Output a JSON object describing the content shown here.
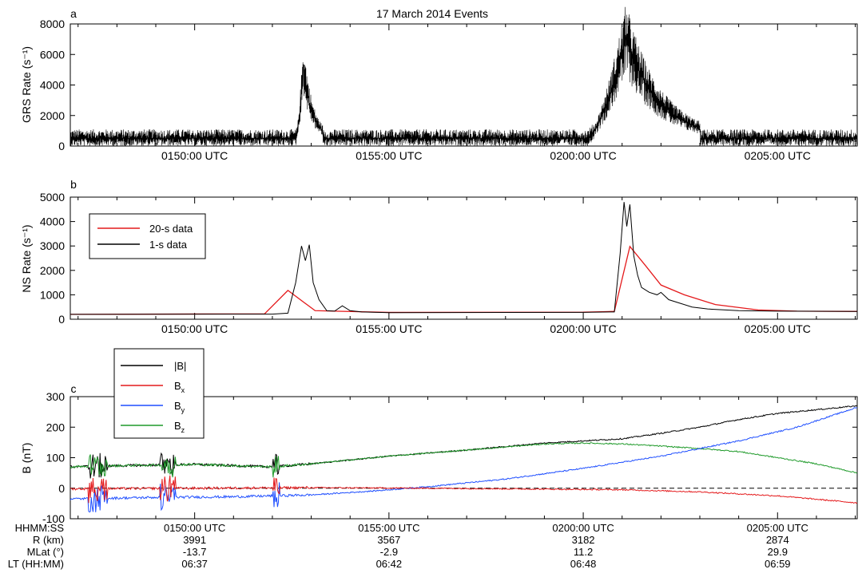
{
  "figure": {
    "title": "17 March 2014 Events",
    "colors": {
      "black": "#000000",
      "red": "#e41a1c",
      "blue": "#1f4fff",
      "green": "#1f9a2a"
    }
  },
  "chart_data": [
    {
      "panel": "a",
      "type": "line",
      "ylabel": "GRS Rate (s⁻¹)",
      "ylim": [
        0,
        8000
      ],
      "yticks": [
        0,
        2000,
        4000,
        6000,
        8000
      ],
      "xlim_minutes": [
        -3.2,
        7.05
      ],
      "xticks": [
        {
          "t": 0,
          "label": "0150:00 UTC"
        },
        {
          "t": 5,
          "label": "0155:00 UTC"
        },
        {
          "t": 10,
          "label": "0200:00 UTC"
        },
        {
          "t": 15,
          "label": "0205:00 UTC"
        }
      ],
      "series": [
        {
          "color": "#000000",
          "baseline": 500,
          "noise": 600,
          "events": [
            {
              "start": 2.6,
              "peak_t": 2.8,
              "peak": 5200,
              "end": 3.3,
              "decay_level": 1200
            },
            {
              "start": 10.1,
              "peak_t": 11.1,
              "peak": 7000,
              "end": 13.0,
              "decay_level": 2200
            }
          ]
        }
      ]
    },
    {
      "panel": "b",
      "type": "line",
      "ylabel": "NS Rate (s⁻¹)",
      "ylim": [
        0,
        5000
      ],
      "yticks": [
        0,
        1000,
        2000,
        3000,
        4000,
        5000
      ],
      "xticks": [
        {
          "t": 0,
          "label": "0150:00 UTC"
        },
        {
          "t": 5,
          "label": "0155:00 UTC"
        },
        {
          "t": 10,
          "label": "0200:00 UTC"
        },
        {
          "t": 15,
          "label": "0205:00 UTC"
        }
      ],
      "legend": [
        {
          "label": "20-s data",
          "color": "#e41a1c"
        },
        {
          "label": "1-s data",
          "color": "#000000"
        }
      ],
      "series": [
        {
          "name": "20-s data",
          "color": "#e41a1c",
          "x": [
            -3.2,
            1.8,
            2.4,
            3.1,
            3.6,
            5.0,
            10.0,
            10.8,
            11.2,
            11.6,
            12.0,
            12.6,
            13.4,
            14.5,
            15.5,
            17.05
          ],
          "y": [
            200,
            220,
            1180,
            350,
            330,
            280,
            290,
            320,
            2980,
            2200,
            1400,
            1000,
            600,
            380,
            330,
            320
          ]
        },
        {
          "name": "1-s data",
          "color": "#000000",
          "x": [
            -3.2,
            2.0,
            2.4,
            2.6,
            2.75,
            2.85,
            2.95,
            3.05,
            3.2,
            3.4,
            3.6,
            3.8,
            4.0,
            4.3,
            5.0,
            10.0,
            10.8,
            10.95,
            11.05,
            11.12,
            11.2,
            11.3,
            11.4,
            11.5,
            11.7,
            11.9,
            12.0,
            12.2,
            12.5,
            12.8,
            13.2,
            14.0,
            15.0,
            17.05
          ],
          "y": [
            200,
            210,
            250,
            1500,
            3000,
            2400,
            3050,
            1500,
            800,
            350,
            330,
            550,
            350,
            300,
            270,
            280,
            300,
            2700,
            4800,
            3800,
            4700,
            2600,
            1800,
            1300,
            1100,
            1000,
            1100,
            800,
            650,
            500,
            420,
            350,
            330,
            320
          ]
        }
      ]
    },
    {
      "panel": "c",
      "type": "line",
      "ylabel": "B (nT)",
      "ylim": [
        -100,
        300
      ],
      "yticks": [
        -100,
        0,
        100,
        200,
        300
      ],
      "xticks": [
        {
          "t": 0,
          "label": "0150:00 UTC"
        },
        {
          "t": 5,
          "label": "0155:00 UTC"
        },
        {
          "t": 10,
          "label": "0200:00 UTC"
        },
        {
          "t": 15,
          "label": "0205:00 UTC"
        }
      ],
      "legend": [
        {
          "label": "|B|",
          "color": "#000000"
        },
        {
          "label": "B",
          "sub": "x",
          "color": "#e41a1c"
        },
        {
          "label": "B",
          "sub": "y",
          "color": "#1f4fff"
        },
        {
          "label": "B",
          "sub": "z",
          "color": "#1f9a2a"
        }
      ],
      "series": [
        {
          "name": "|B|",
          "color": "#000000",
          "x": [
            -3.2,
            -1.5,
            0.0,
            2.0,
            3.0,
            5.0,
            7.0,
            9.0,
            10.0,
            11.0,
            12.0,
            13.0,
            14.0,
            15.0,
            17.05
          ],
          "y": [
            70,
            75,
            78,
            70,
            80,
            105,
            125,
            148,
            155,
            162,
            180,
            200,
            225,
            245,
            270
          ]
        },
        {
          "name": "B",
          "sub": "x",
          "color": "#e41a1c",
          "x": [
            -3.2,
            0.0,
            3.0,
            6.0,
            9.0,
            11.0,
            13.0,
            15.0,
            17.05
          ],
          "y": [
            -2,
            0,
            2,
            0,
            -3,
            -5,
            -12,
            -25,
            -48
          ]
        },
        {
          "name": "B",
          "sub": "y",
          "color": "#1f4fff",
          "x": [
            -3.2,
            -1.0,
            1.0,
            3.0,
            4.5,
            6.0,
            8.0,
            10.0,
            12.0,
            14.0,
            15.5,
            17.05
          ],
          "y": [
            -35,
            -30,
            -28,
            -22,
            -10,
            5,
            30,
            65,
            105,
            155,
            200,
            265
          ]
        },
        {
          "name": "B",
          "sub": "z",
          "color": "#1f9a2a",
          "x": [
            -3.2,
            -1.5,
            0.0,
            2.0,
            3.0,
            5.0,
            7.0,
            9.0,
            10.0,
            11.0,
            12.0,
            13.0,
            14.0,
            15.0,
            16.0,
            17.05
          ],
          "y": [
            70,
            75,
            78,
            70,
            80,
            105,
            125,
            145,
            148,
            145,
            138,
            130,
            120,
            100,
            80,
            50
          ]
        }
      ],
      "reference_line": 0,
      "ephemeris": {
        "rows": [
          {
            "name": "HHMM:SS",
            "values": [
              "0150:00 UTC",
              "0155:00 UTC",
              "0200:00 UTC",
              "0205:00 UTC"
            ]
          },
          {
            "name": "R (km)",
            "values": [
              "3991",
              "3567",
              "3182",
              "2874"
            ]
          },
          {
            "name": "MLat (°)",
            "values": [
              "-13.7",
              "-2.9",
              "11.2",
              "29.9"
            ]
          },
          {
            "name": "LT (HH:MM)",
            "values": [
              "06:37",
              "06:42",
              "06:48",
              "06:59"
            ]
          }
        ]
      }
    }
  ]
}
